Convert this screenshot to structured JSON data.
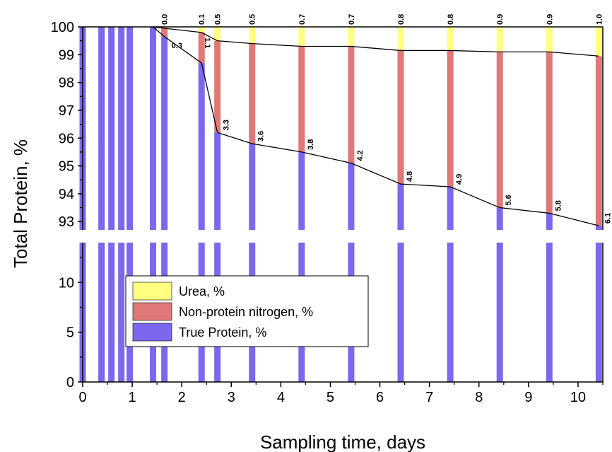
{
  "chart_data": {
    "type": "bar",
    "stacked": true,
    "broken_y_axis": true,
    "xlabel": "Sampling time, days",
    "ylabel": "Total Protein, %",
    "xlim": [
      0,
      10.5
    ],
    "x_ticks": [
      "0",
      "1",
      "2",
      "3",
      "4",
      "5",
      "6",
      "7",
      "8",
      "9",
      "10"
    ],
    "y_lower_range": [
      0,
      14
    ],
    "y_upper_range": [
      92.7,
      100
    ],
    "y_lower_ticks": [
      "0",
      "5",
      "10"
    ],
    "y_upper_ticks": [
      "93",
      "94",
      "95",
      "96",
      "97",
      "98",
      "99",
      "100"
    ],
    "legend_position": "lower-left",
    "colors": {
      "urea": "#ffff80",
      "npn": "#e07878",
      "true_protein": "#7b68ee"
    },
    "series_legend": [
      {
        "name": "Urea, %",
        "key": "urea"
      },
      {
        "name": "Non-protein nitrogen, %",
        "key": "npn"
      },
      {
        "name": "True Protein, %",
        "key": "true_protein"
      }
    ],
    "x": [
      0.0,
      0.38,
      0.58,
      0.78,
      0.95,
      1.42,
      1.65,
      2.4,
      2.72,
      3.42,
      4.42,
      5.42,
      6.42,
      7.42,
      8.42,
      9.42,
      10.42
    ],
    "true_protein": [
      100,
      100,
      100,
      100,
      100,
      100,
      99.65,
      98.7,
      96.2,
      95.8,
      95.5,
      95.1,
      94.35,
      94.25,
      93.5,
      93.3,
      92.85
    ],
    "npn": [
      0,
      0,
      0,
      0,
      0,
      0,
      0.3,
      1.1,
      3.3,
      3.6,
      3.8,
      4.2,
      4.8,
      4.9,
      5.6,
      5.8,
      6.1
    ],
    "urea": [
      0,
      0,
      0,
      0,
      0,
      0,
      0.0,
      0.1,
      0.5,
      0.5,
      0.7,
      0.7,
      0.8,
      0.8,
      0.9,
      0.9,
      1.0
    ],
    "urea_labels": [
      "",
      "",
      "",
      "",
      "",
      "",
      "0.0",
      "0.1",
      "0.5",
      "0.5",
      "0.7",
      "0.7",
      "0.8",
      "0.8",
      "0.9",
      "0.9",
      "1.0"
    ],
    "npn_labels": [
      "",
      "",
      "",
      "",
      "",
      "",
      "0.3",
      "1.1",
      "3.3",
      "3.6",
      "3.8",
      "4.2",
      "4.8",
      "4.9",
      "5.6",
      "5.8",
      "6.1"
    ]
  }
}
